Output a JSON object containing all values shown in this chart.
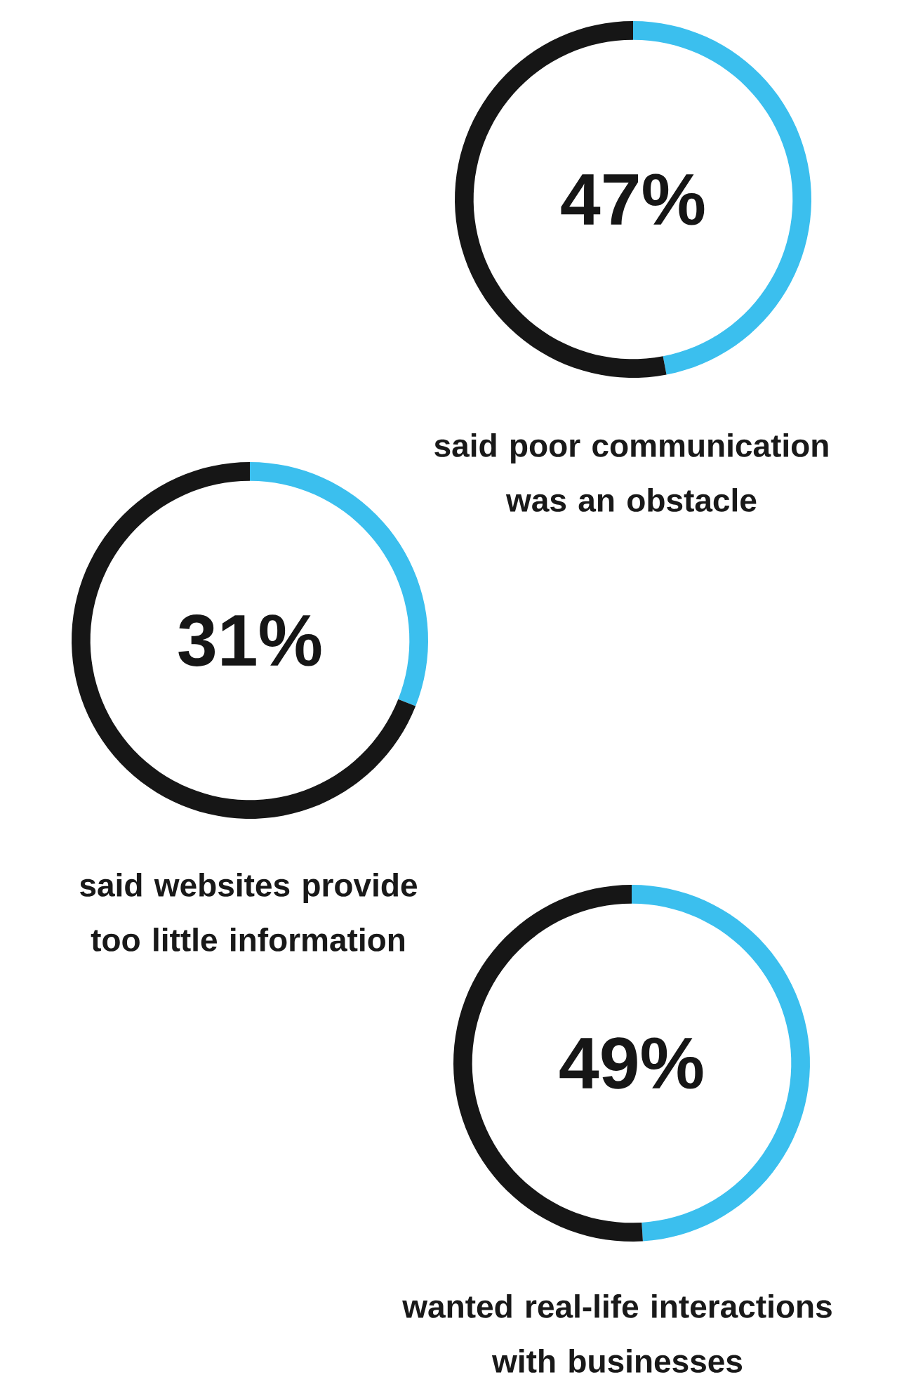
{
  "chart_data": [
    {
      "type": "donut",
      "title": "said poor communication was an obstacle",
      "categories": [
        null,
        null
      ],
      "values": [
        47,
        53
      ],
      "colors": [
        "#3bbfee",
        "#161616"
      ],
      "value_labels": [
        "47%",
        null
      ]
    },
    {
      "type": "donut",
      "title": "said websites provide too little information",
      "categories": [
        null,
        null
      ],
      "values": [
        31,
        69
      ],
      "colors": [
        "#3bbfee",
        "#161616"
      ],
      "value_labels": [
        "31%",
        null
      ]
    },
    {
      "type": "donut",
      "title": "wanted real-life interactions with businesses",
      "categories": [
        null,
        null
      ],
      "values": [
        49,
        51
      ],
      "colors": [
        "#3bbfee",
        "#161616"
      ],
      "value_labels": [
        "49%",
        null
      ]
    }
  ]
}
